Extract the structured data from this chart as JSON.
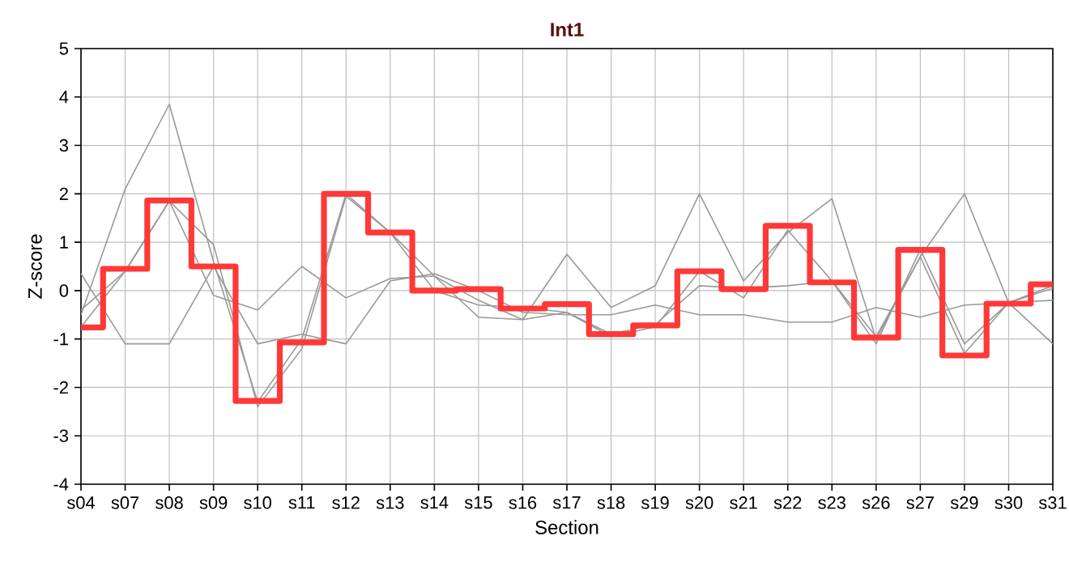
{
  "chart_data": {
    "type": "line",
    "title": "Int1",
    "xlabel": "Section",
    "ylabel": "Z-score",
    "categories": [
      "s04",
      "s07",
      "s08",
      "s09",
      "s10",
      "s11",
      "s12",
      "s13",
      "s14",
      "s15",
      "s16",
      "s17",
      "s18",
      "s19",
      "s20",
      "s21",
      "s22",
      "s23",
      "s26",
      "s27",
      "s29",
      "s30",
      "s31"
    ],
    "ylim": [
      -4,
      5
    ],
    "yticks": [
      -4,
      -3,
      -2,
      -1,
      0,
      1,
      2,
      3,
      4,
      5
    ],
    "grid": true,
    "legend": false,
    "marker": "none",
    "line_style": "solid",
    "series": [
      {
        "color": "#999999",
        "values": [
          -0.5,
          2.1,
          3.85,
          0.6,
          -2.3,
          -1.0,
          2.0,
          1.2,
          0.3,
          -0.2,
          -0.6,
          0.75,
          -0.35,
          0.1,
          2.0,
          0.2,
          1.2,
          1.9,
          -1.0,
          0.7,
          2.0,
          -0.25,
          -1.1
        ]
      },
      {
        "color": "#999999",
        "values": [
          0.35,
          -1.1,
          -1.1,
          0.5,
          -1.1,
          -0.9,
          -1.1,
          0.2,
          0.35,
          0.0,
          -0.45,
          -0.5,
          -0.5,
          -0.3,
          -0.5,
          -0.5,
          -0.65,
          -0.65,
          -0.35,
          -0.55,
          -0.3,
          -0.25,
          -0.2
        ]
      },
      {
        "color": "#999999",
        "values": [
          -0.75,
          0.4,
          1.85,
          -0.1,
          -0.4,
          0.5,
          -0.15,
          0.25,
          0.3,
          -0.55,
          -0.6,
          -0.45,
          -0.95,
          -0.75,
          0.4,
          -0.15,
          1.25,
          0.2,
          -1.1,
          0.85,
          -1.1,
          -0.25,
          0.1
        ]
      },
      {
        "color": "#999999",
        "values": [
          -0.4,
          0.4,
          1.85,
          0.95,
          -2.4,
          -1.2,
          1.95,
          1.2,
          0.0,
          -0.3,
          -0.35,
          -0.45,
          -0.9,
          -0.7,
          0.1,
          0.05,
          0.1,
          0.2,
          -0.95,
          0.7,
          -1.3,
          -0.25,
          0.05
        ]
      },
      {
        "type": "step",
        "color": "#ff3838",
        "values": [
          -0.76,
          0.45,
          1.86,
          0.5,
          -2.28,
          -1.07,
          2.0,
          1.2,
          0.0,
          0.03,
          -0.37,
          -0.28,
          -0.9,
          -0.72,
          0.4,
          0.03,
          1.34,
          0.17,
          -0.97,
          0.84,
          -1.34,
          -0.27,
          0.13
        ]
      }
    ]
  }
}
